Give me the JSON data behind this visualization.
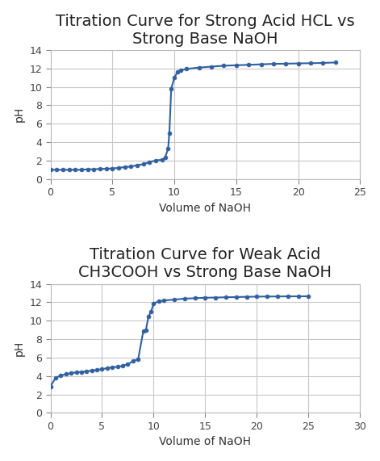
{
  "chart1": {
    "title": "Titration Curve for Strong Acid HCL vs\nStrong Base NaOH",
    "xlabel": "Volume of NaOH",
    "ylabel": "pH",
    "xlim": [
      0,
      25
    ],
    "ylim": [
      0,
      14
    ],
    "xticks": [
      0,
      5,
      10,
      15,
      20,
      25
    ],
    "yticks": [
      0,
      2,
      4,
      6,
      8,
      10,
      12,
      14
    ],
    "x": [
      0,
      0.5,
      1,
      1.5,
      2,
      2.5,
      3,
      3.5,
      4,
      4.5,
      5,
      5.5,
      6,
      6.5,
      7,
      7.5,
      8,
      8.5,
      9,
      9.25,
      9.5,
      9.6,
      9.75,
      10.0,
      10.25,
      10.5,
      11,
      12,
      13,
      14,
      15,
      16,
      17,
      18,
      19,
      20,
      21,
      22,
      23
    ],
    "y": [
      1.0,
      1.0,
      1.0,
      1.0,
      1.0,
      1.0,
      1.05,
      1.05,
      1.1,
      1.1,
      1.15,
      1.2,
      1.3,
      1.35,
      1.5,
      1.6,
      1.85,
      2.0,
      2.1,
      2.3,
      3.3,
      5.0,
      9.8,
      11.0,
      11.6,
      11.8,
      11.95,
      12.1,
      12.2,
      12.3,
      12.35,
      12.4,
      12.45,
      12.5,
      12.52,
      12.55,
      12.57,
      12.6,
      12.65
    ],
    "line_color": "#3060A0",
    "marker": "o",
    "marker_size": 3.5,
    "line_width": 1.5
  },
  "chart2": {
    "title": "Titration Curve for Weak Acid\nCH3COOH vs Strong Base NaOH",
    "xlabel": "Volume of NaOH",
    "ylabel": "pH",
    "xlim": [
      0,
      30
    ],
    "ylim": [
      0,
      14
    ],
    "xticks": [
      0,
      5,
      10,
      15,
      20,
      25,
      30
    ],
    "yticks": [
      0,
      2,
      4,
      6,
      8,
      10,
      12,
      14
    ],
    "x": [
      0,
      0.5,
      1,
      1.5,
      2,
      2.5,
      3,
      3.5,
      4,
      4.5,
      5,
      5.5,
      6,
      6.5,
      7,
      7.5,
      8,
      8.5,
      9,
      9.25,
      9.5,
      9.75,
      10.0,
      10.5,
      11,
      12,
      13,
      14,
      15,
      16,
      17,
      18,
      19,
      20,
      21,
      22,
      23,
      24,
      25
    ],
    "y": [
      2.87,
      3.8,
      4.05,
      4.2,
      4.3,
      4.4,
      4.45,
      4.5,
      4.6,
      4.65,
      4.75,
      4.85,
      4.95,
      5.0,
      5.1,
      5.3,
      5.6,
      5.85,
      8.9,
      9.0,
      10.5,
      11.0,
      11.9,
      12.1,
      12.2,
      12.3,
      12.4,
      12.45,
      12.5,
      12.52,
      12.55,
      12.57,
      12.6,
      12.62,
      12.63,
      12.64,
      12.65,
      12.65,
      12.66
    ],
    "line_color": "#3060A0",
    "marker": "o",
    "marker_size": 3.5,
    "line_width": 1.5
  },
  "bg_color": "#FFFFFF",
  "plot_bg_color": "#FFFFFF",
  "grid_color": "#C8C8C8",
  "title_fontsize": 14,
  "label_fontsize": 10,
  "tick_fontsize": 9
}
